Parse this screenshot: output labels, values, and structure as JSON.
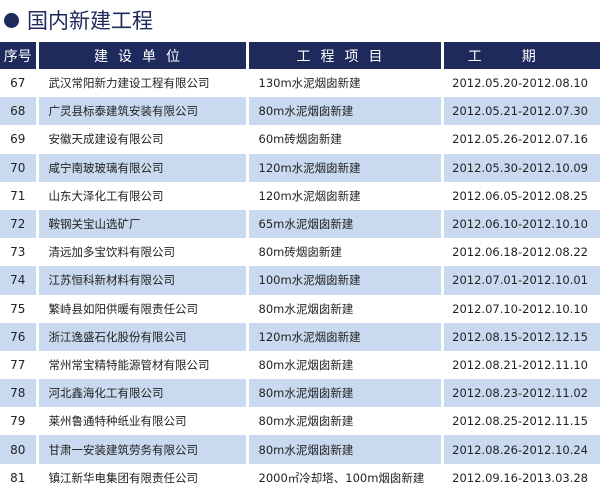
{
  "title": "国内新建工程",
  "colors": {
    "header": "#1f2a5c",
    "alt_row": "#c9d9ef"
  },
  "headers": [
    "序号",
    "建设单位",
    "工程项目",
    "工期"
  ],
  "rows": [
    {
      "no": "67",
      "unit": "武汉常阳新力建设工程有限公司",
      "project": "130m水泥烟囱新建",
      "period": "2012.05.20-2012.08.10"
    },
    {
      "no": "68",
      "unit": "广灵县标泰建筑安装有限公司",
      "project": "80m水泥烟囱新建",
      "period": "2012.05.21-2012.07.30"
    },
    {
      "no": "69",
      "unit": "安徽天成建设有限公司",
      "project": "60m砖烟囱新建",
      "period": "2012.05.26-2012.07.16"
    },
    {
      "no": "70",
      "unit": "咸宁南玻玻璃有限公司",
      "project": "120m水泥烟囱新建",
      "period": "2012.05.30-2012.10.09"
    },
    {
      "no": "71",
      "unit": "山东大泽化工有限公司",
      "project": "120m水泥烟囱新建",
      "period": "2012.06.05-2012.08.25"
    },
    {
      "no": "72",
      "unit": "鞍钢关宝山选矿厂",
      "project": "65m水泥烟囱新建",
      "period": "2012.06.10-2012.10.10"
    },
    {
      "no": "73",
      "unit": "清远加多宝饮料有限公司",
      "project": "80m砖烟囱新建",
      "period": "2012.06.18-2012.08.22"
    },
    {
      "no": "74",
      "unit": "江苏恒科新材料有限公司",
      "project": "100m水泥烟囱新建",
      "period": "2012.07.01-2012.10.01"
    },
    {
      "no": "75",
      "unit": "繁峙县如阳供暖有限责任公司",
      "project": "80m水泥烟囱新建",
      "period": "2012.07.10-2012.10.10"
    },
    {
      "no": "76",
      "unit": "浙江逸盛石化股份有限公司",
      "project": "120m水泥烟囱新建",
      "period": "2012.08.15-2012.12.15"
    },
    {
      "no": "77",
      "unit": "常州常宝精特能源管材有限公司",
      "project": "80m水泥烟囱新建",
      "period": "2012.08.21-2012.11.10"
    },
    {
      "no": "78",
      "unit": "河北鑫海化工有限公司",
      "project": "80m水泥烟囱新建",
      "period": "2012.08.23-2012.11.02"
    },
    {
      "no": "79",
      "unit": "莱州鲁通特种纸业有限公司",
      "project": "80m水泥烟囱新建",
      "period": "2012.08.25-2012.11.15"
    },
    {
      "no": "80",
      "unit": "甘肃一安装建筑劳务有限公司",
      "project": "80m水泥烟囱新建",
      "period": "2012.08.26-2012.10.24"
    },
    {
      "no": "81",
      "unit": "镇江新华电集团有限责任公司",
      "project": "2000㎡冷却塔、100m烟囱新建",
      "period": "2012.09.16-2013.03.28"
    }
  ]
}
